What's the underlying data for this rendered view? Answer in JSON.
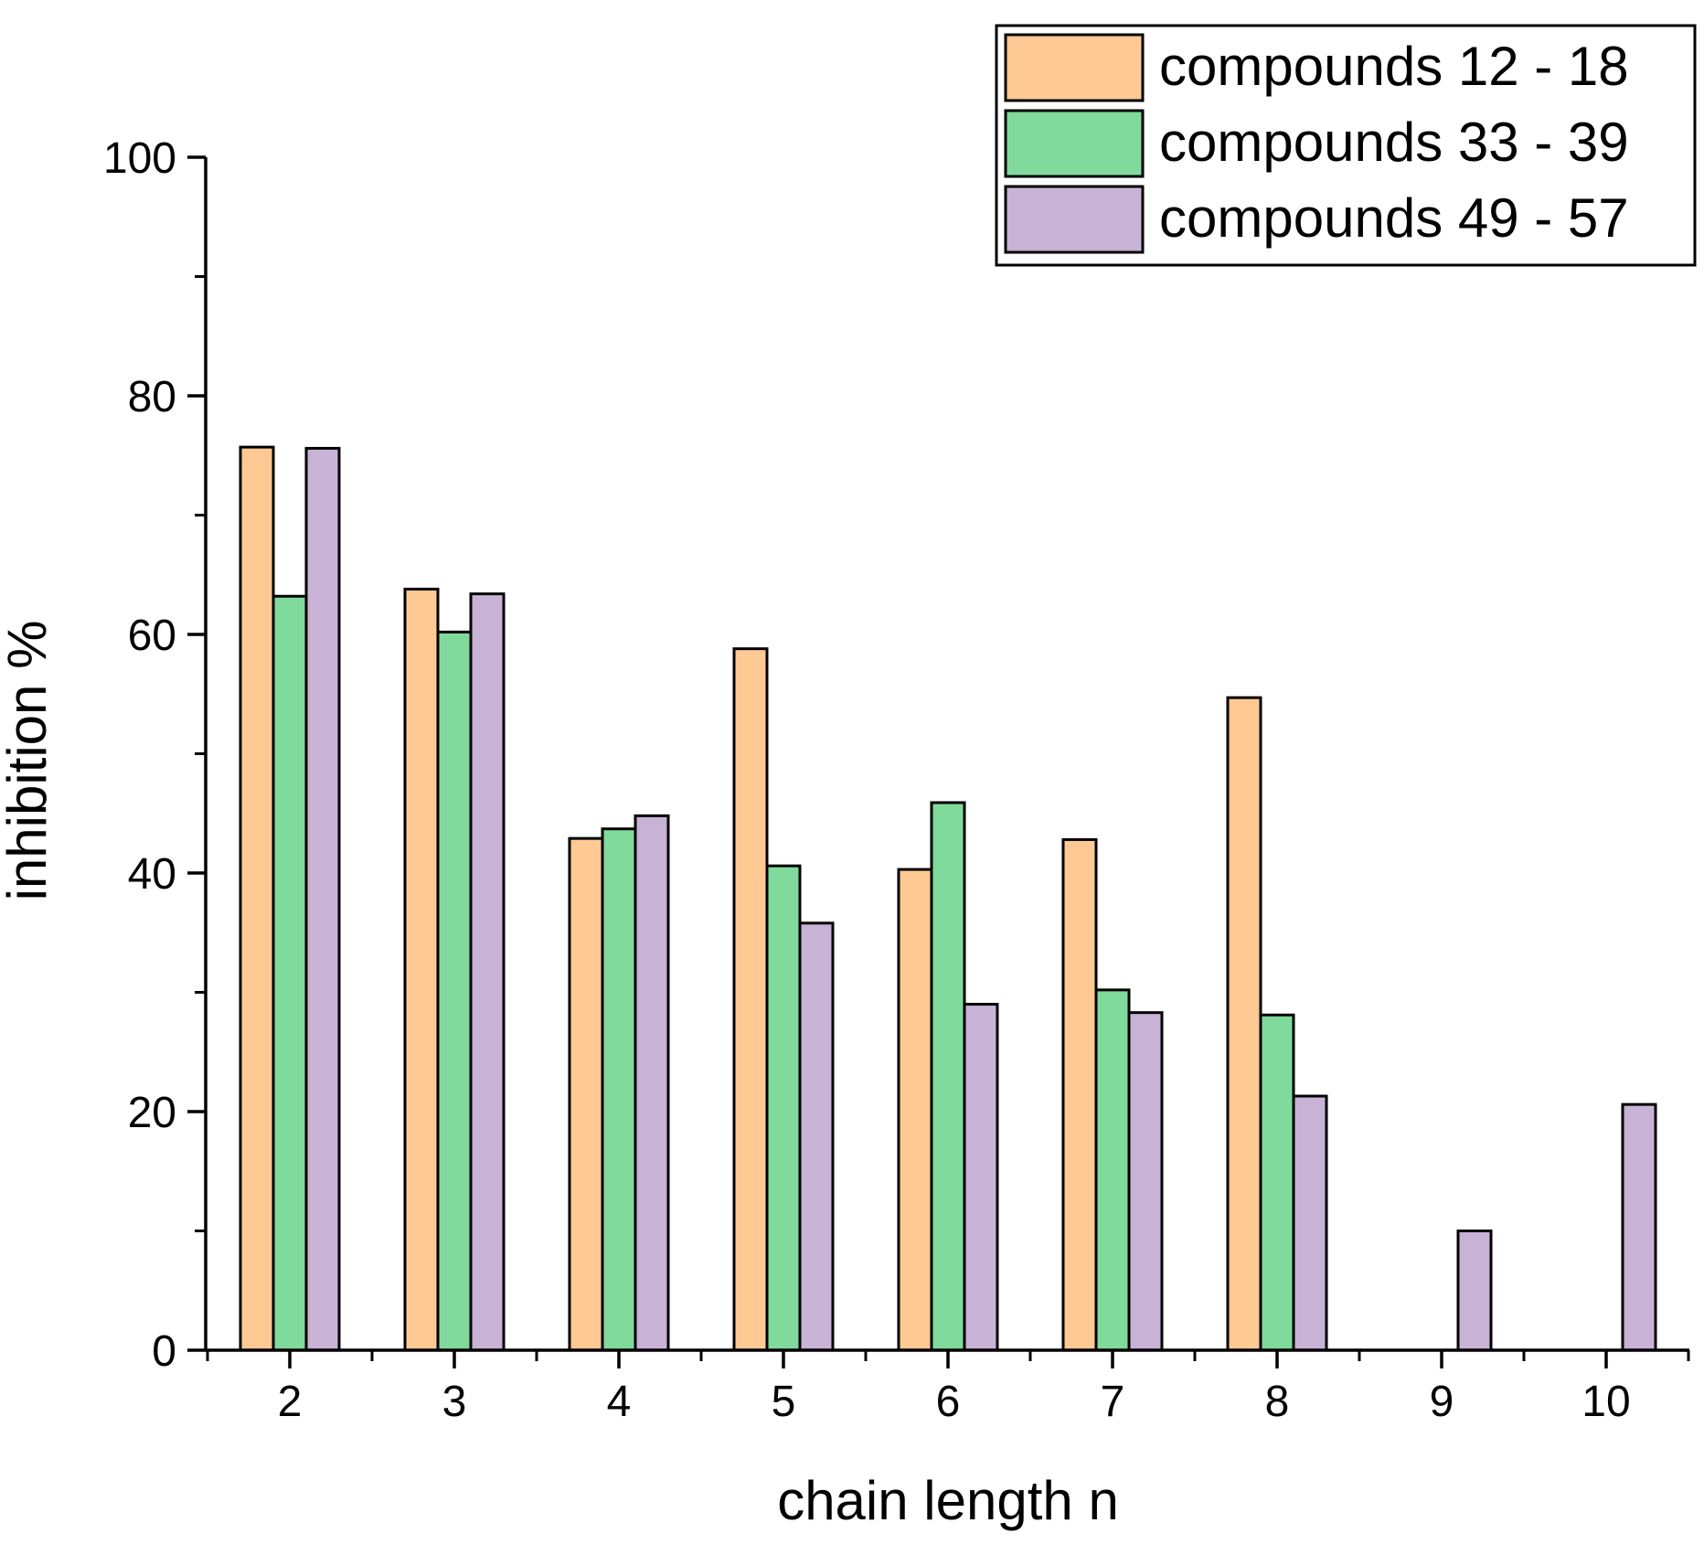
{
  "chart_data": {
    "type": "bar",
    "title": "",
    "xlabel": "chain length n",
    "ylabel": "inhibition %",
    "ylim": [
      0,
      100
    ],
    "yticks": [
      0,
      20,
      40,
      60,
      80,
      100
    ],
    "categories": [
      "2",
      "3",
      "4",
      "5",
      "6",
      "7",
      "8",
      "9",
      "10"
    ],
    "grid": false,
    "legend_position": "top-right",
    "series": [
      {
        "name": "compounds 12 - 18",
        "color": "#FFC994",
        "values": [
          75.7,
          63.8,
          42.9,
          58.8,
          40.3,
          42.8,
          54.7,
          null,
          null
        ]
      },
      {
        "name": "compounds 33 - 39",
        "color": "#80DA9B",
        "values": [
          63.2,
          60.2,
          43.7,
          40.6,
          45.9,
          30.2,
          28.1,
          null,
          null
        ]
      },
      {
        "name": "compounds 49 - 57",
        "color": "#C8B2D6",
        "values": [
          75.6,
          63.4,
          44.8,
          35.8,
          29.0,
          28.3,
          21.3,
          10.0,
          20.6
        ]
      }
    ]
  }
}
